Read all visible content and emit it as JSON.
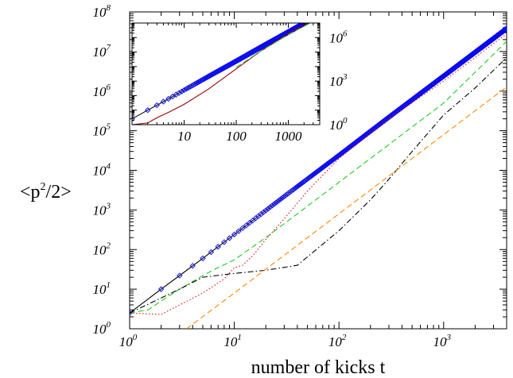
{
  "chart_data": [
    {
      "type": "line",
      "xlabel": "number of kicks t",
      "ylabel": "<p^2/2>",
      "xscale": "log",
      "yscale": "log",
      "xlim": [
        1,
        4000
      ],
      "ylim": [
        1,
        100000000
      ],
      "x_ticks": [
        1,
        10,
        100,
        1000
      ],
      "x_tick_labels": [
        {
          "base": "10",
          "exp": "0"
        },
        {
          "base": "10",
          "exp": "1"
        },
        {
          "base": "10",
          "exp": "2"
        },
        {
          "base": "10",
          "exp": "3"
        }
      ],
      "y_ticks": [
        1,
        10,
        100,
        1000,
        10000,
        100000,
        1000000,
        10000000,
        100000000
      ],
      "y_tick_labels": [
        {
          "base": "10",
          "exp": "0"
        },
        {
          "base": "10",
          "exp": "1"
        },
        {
          "base": "10",
          "exp": "2"
        },
        {
          "base": "10",
          "exp": "3"
        },
        {
          "base": "10",
          "exp": "4"
        },
        {
          "base": "10",
          "exp": "5"
        },
        {
          "base": "10",
          "exp": "6"
        },
        {
          "base": "10",
          "exp": "7"
        },
        {
          "base": "10",
          "exp": "8"
        }
      ],
      "grid": false,
      "legend": "none",
      "series": [
        {
          "style": "solid",
          "color": "#000000",
          "markers": "blue-diamonds",
          "marker_color": "#1010ee",
          "x": [
            1,
            2,
            3,
            5,
            10,
            30,
            100,
            300,
            1000,
            4000
          ],
          "y": [
            2.5,
            10,
            22,
            60,
            240,
            2200,
            24000,
            220000,
            2400000,
            38000000
          ]
        },
        {
          "style": "dashed",
          "color": "#22cc22",
          "x": [
            1,
            1.5,
            2,
            3,
            5,
            7,
            10,
            20,
            40,
            100,
            300,
            1000,
            4000
          ],
          "y": [
            2.5,
            3,
            5,
            10,
            22,
            35,
            55,
            200,
            800,
            5000,
            45000,
            500000,
            18000000
          ]
        },
        {
          "style": "dotted",
          "color": "#dd1111",
          "x": [
            1,
            2,
            3,
            5,
            8,
            10,
            12,
            15,
            20,
            30,
            50,
            100,
            300,
            1000,
            4000
          ],
          "y": [
            2.5,
            2.3,
            4,
            8,
            18,
            35,
            40,
            70,
            180,
            600,
            3000,
            20000,
            200000,
            1800000,
            28000000
          ]
        },
        {
          "style": "dash-dot",
          "color": "#000000",
          "x": [
            1,
            2,
            3,
            5,
            10,
            20,
            40,
            100,
            200,
            300,
            500,
            1000,
            2000,
            4000
          ],
          "y": [
            2.5,
            6,
            10,
            20,
            25,
            30,
            40,
            300,
            1800,
            6000,
            30000,
            250000,
            1200000,
            7000000
          ]
        },
        {
          "style": "dashed",
          "color": "#ff8800",
          "x": [
            3.5,
            10,
            30,
            100,
            300,
            1000,
            4000
          ],
          "y": [
            1,
            8,
            72,
            800,
            7200,
            80000,
            1280000
          ]
        }
      ]
    },
    {
      "type": "line",
      "title": "",
      "xscale": "log",
      "yscale": "log",
      "xlim": [
        1,
        4000
      ],
      "ylim": [
        1,
        10000000
      ],
      "x_ticks": [
        10,
        100,
        1000
      ],
      "x_tick_labels": [
        "10",
        "100",
        "1000"
      ],
      "y_axis_side": "right",
      "y_ticks": [
        1,
        1000,
        1000000
      ],
      "y_tick_labels": [
        {
          "base": "10",
          "exp": "0"
        },
        {
          "base": "10",
          "exp": "3"
        },
        {
          "base": "10",
          "exp": "6"
        }
      ],
      "grid": false,
      "legend": "none",
      "series": [
        {
          "style": "solid",
          "color": "#000000",
          "markers": "blue-diamonds",
          "marker_color": "#1010ee",
          "x": [
            1,
            2,
            3,
            5,
            10,
            30,
            100,
            300,
            1000,
            4000
          ],
          "y": [
            2.5,
            10,
            22,
            60,
            240,
            2200,
            24000,
            220000,
            2400000,
            38000000
          ]
        },
        {
          "style": "solid",
          "color": "#990000",
          "x": [
            1,
            2,
            3,
            5,
            10,
            30,
            100,
            300,
            1000,
            4000
          ],
          "y": [
            1,
            1.3,
            3,
            7,
            25,
            300,
            7000,
            120000,
            1800000,
            30000000
          ]
        },
        {
          "style": "dashed",
          "color": "#22cc22",
          "x": [
            100,
            300,
            1000,
            4000
          ],
          "y": [
            9000,
            120000,
            1600000,
            22000000
          ]
        }
      ]
    }
  ]
}
